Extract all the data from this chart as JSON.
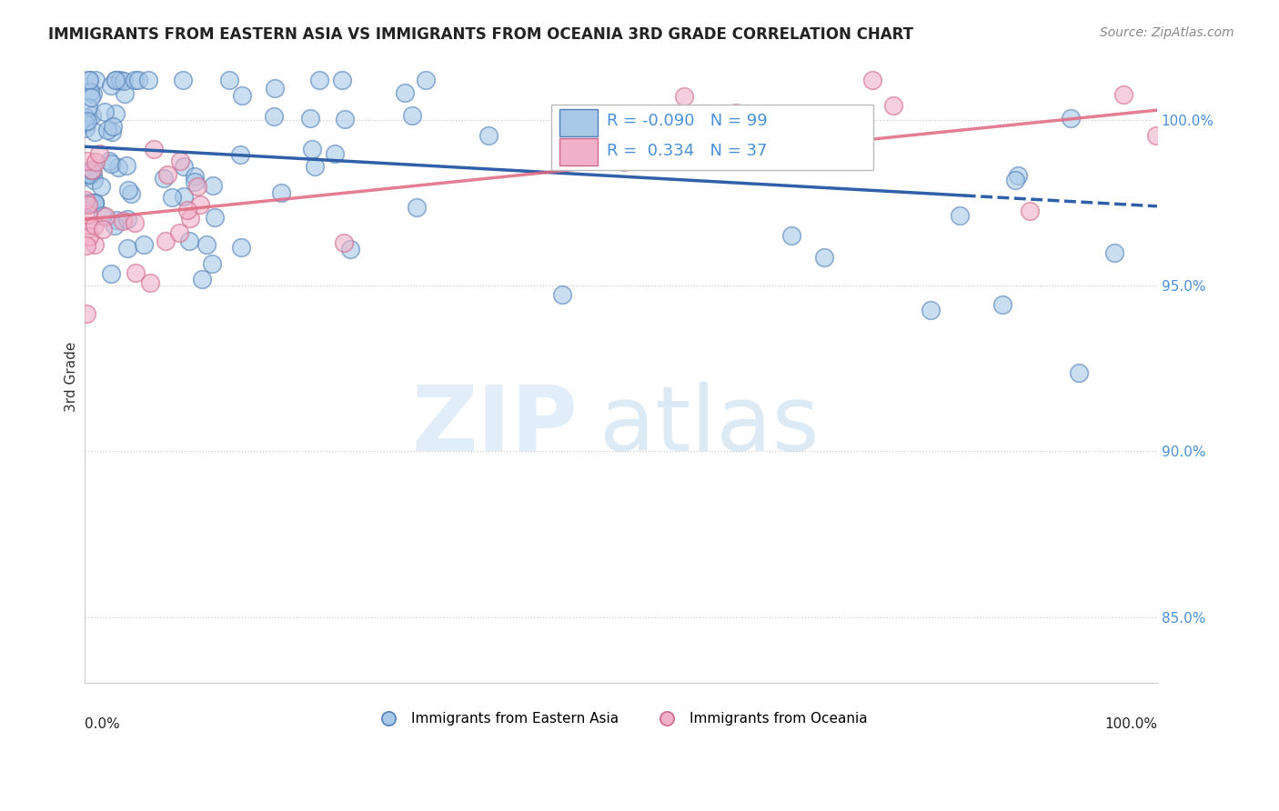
{
  "title": "IMMIGRANTS FROM EASTERN ASIA VS IMMIGRANTS FROM OCEANIA 3RD GRADE CORRELATION CHART",
  "source": "Source: ZipAtlas.com",
  "ylabel": "3rd Grade",
  "y_ticks": [
    85.0,
    90.0,
    95.0,
    100.0
  ],
  "y_tick_labels": [
    "85.0%",
    "90.0%",
    "95.0%",
    "100.0%"
  ],
  "xlim": [
    0.0,
    100.0
  ],
  "ylim": [
    83.0,
    101.5
  ],
  "blue_R": -0.09,
  "blue_N": 99,
  "pink_R": 0.334,
  "pink_N": 37,
  "blue_color": "#a8c8e8",
  "pink_color": "#f0b0c8",
  "blue_edge_color": "#5080b8",
  "pink_edge_color": "#d06888",
  "blue_line_color": "#3060a8",
  "pink_line_color": "#e06880",
  "legend_label_blue": "Immigrants from Eastern Asia",
  "legend_label_pink": "Immigrants from Oceania",
  "right_tick_color": "#4a90d9",
  "title_fontsize": 12,
  "source_fontsize": 10,
  "tick_fontsize": 11,
  "legend_fontsize": 11,
  "blue_line_y0": 99.2,
  "blue_line_y100": 97.4,
  "pink_line_y0": 97.0,
  "pink_line_y100": 100.3,
  "solid_end": 82
}
